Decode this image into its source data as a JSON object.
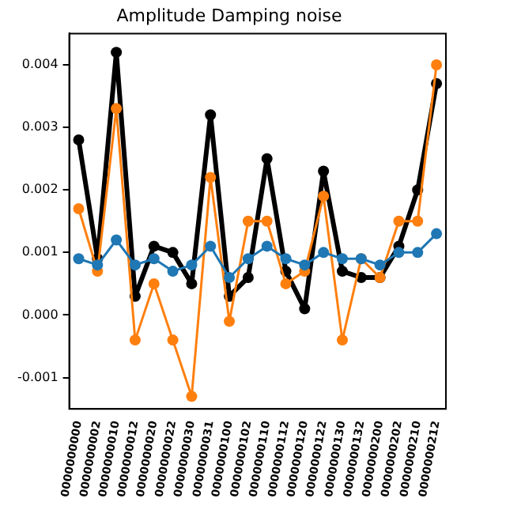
{
  "chart_data": {
    "type": "line",
    "title": "Amplitude Damping noise",
    "categories": [
      "0000000000",
      "0000000002",
      "0000000010",
      "0000000012",
      "0000000020",
      "0000000022",
      "0000000030",
      "0000000031",
      "0000000100",
      "0000000102",
      "0000000110",
      "0000000112",
      "0000000120",
      "0000000122",
      "0000000130",
      "0000000132",
      "0000000200",
      "0000000202",
      "0000000210",
      "0000000212"
    ],
    "series": [
      {
        "color": "#000000",
        "values": [
          0.0028,
          0.0009,
          0.0042,
          0.0003,
          0.0011,
          0.001,
          0.0005,
          0.0032,
          0.0003,
          0.0006,
          0.0025,
          0.0007,
          0.0001,
          0.0023,
          0.0007,
          0.0006,
          0.0006,
          0.0011,
          0.002,
          0.0037
        ]
      },
      {
        "color": "#ff7f0e",
        "values": [
          0.0017,
          0.0007,
          0.0033,
          -0.0004,
          0.0005,
          -0.0004,
          -0.0013,
          0.0022,
          -0.0001,
          0.0015,
          0.0015,
          0.0005,
          0.0007,
          0.0019,
          -0.0004,
          0.0009,
          0.0006,
          0.0015,
          0.0015,
          0.004
        ]
      },
      {
        "color": "#1f77b4",
        "values": [
          0.0009,
          0.0008,
          0.0012,
          0.0008,
          0.0009,
          0.0007,
          0.0008,
          0.0011,
          0.0006,
          0.0009,
          0.0011,
          0.0009,
          0.0008,
          0.001,
          0.0009,
          0.0009,
          0.0008,
          0.001,
          0.001,
          0.0013
        ]
      }
    ],
    "ylim": [
      -0.0015,
      0.0045
    ],
    "yticks": [
      {
        "value": -0.001,
        "label": "-0.001"
      },
      {
        "value": 0,
        "label": "0.000"
      },
      {
        "value": 0.001,
        "label": "0.001"
      },
      {
        "value": 0.002,
        "label": "0.002"
      },
      {
        "value": 0.003,
        "label": "0.003"
      },
      {
        "value": 0.004,
        "label": "0.004"
      }
    ],
    "marker": "circle",
    "grid": false,
    "legend": false
  }
}
